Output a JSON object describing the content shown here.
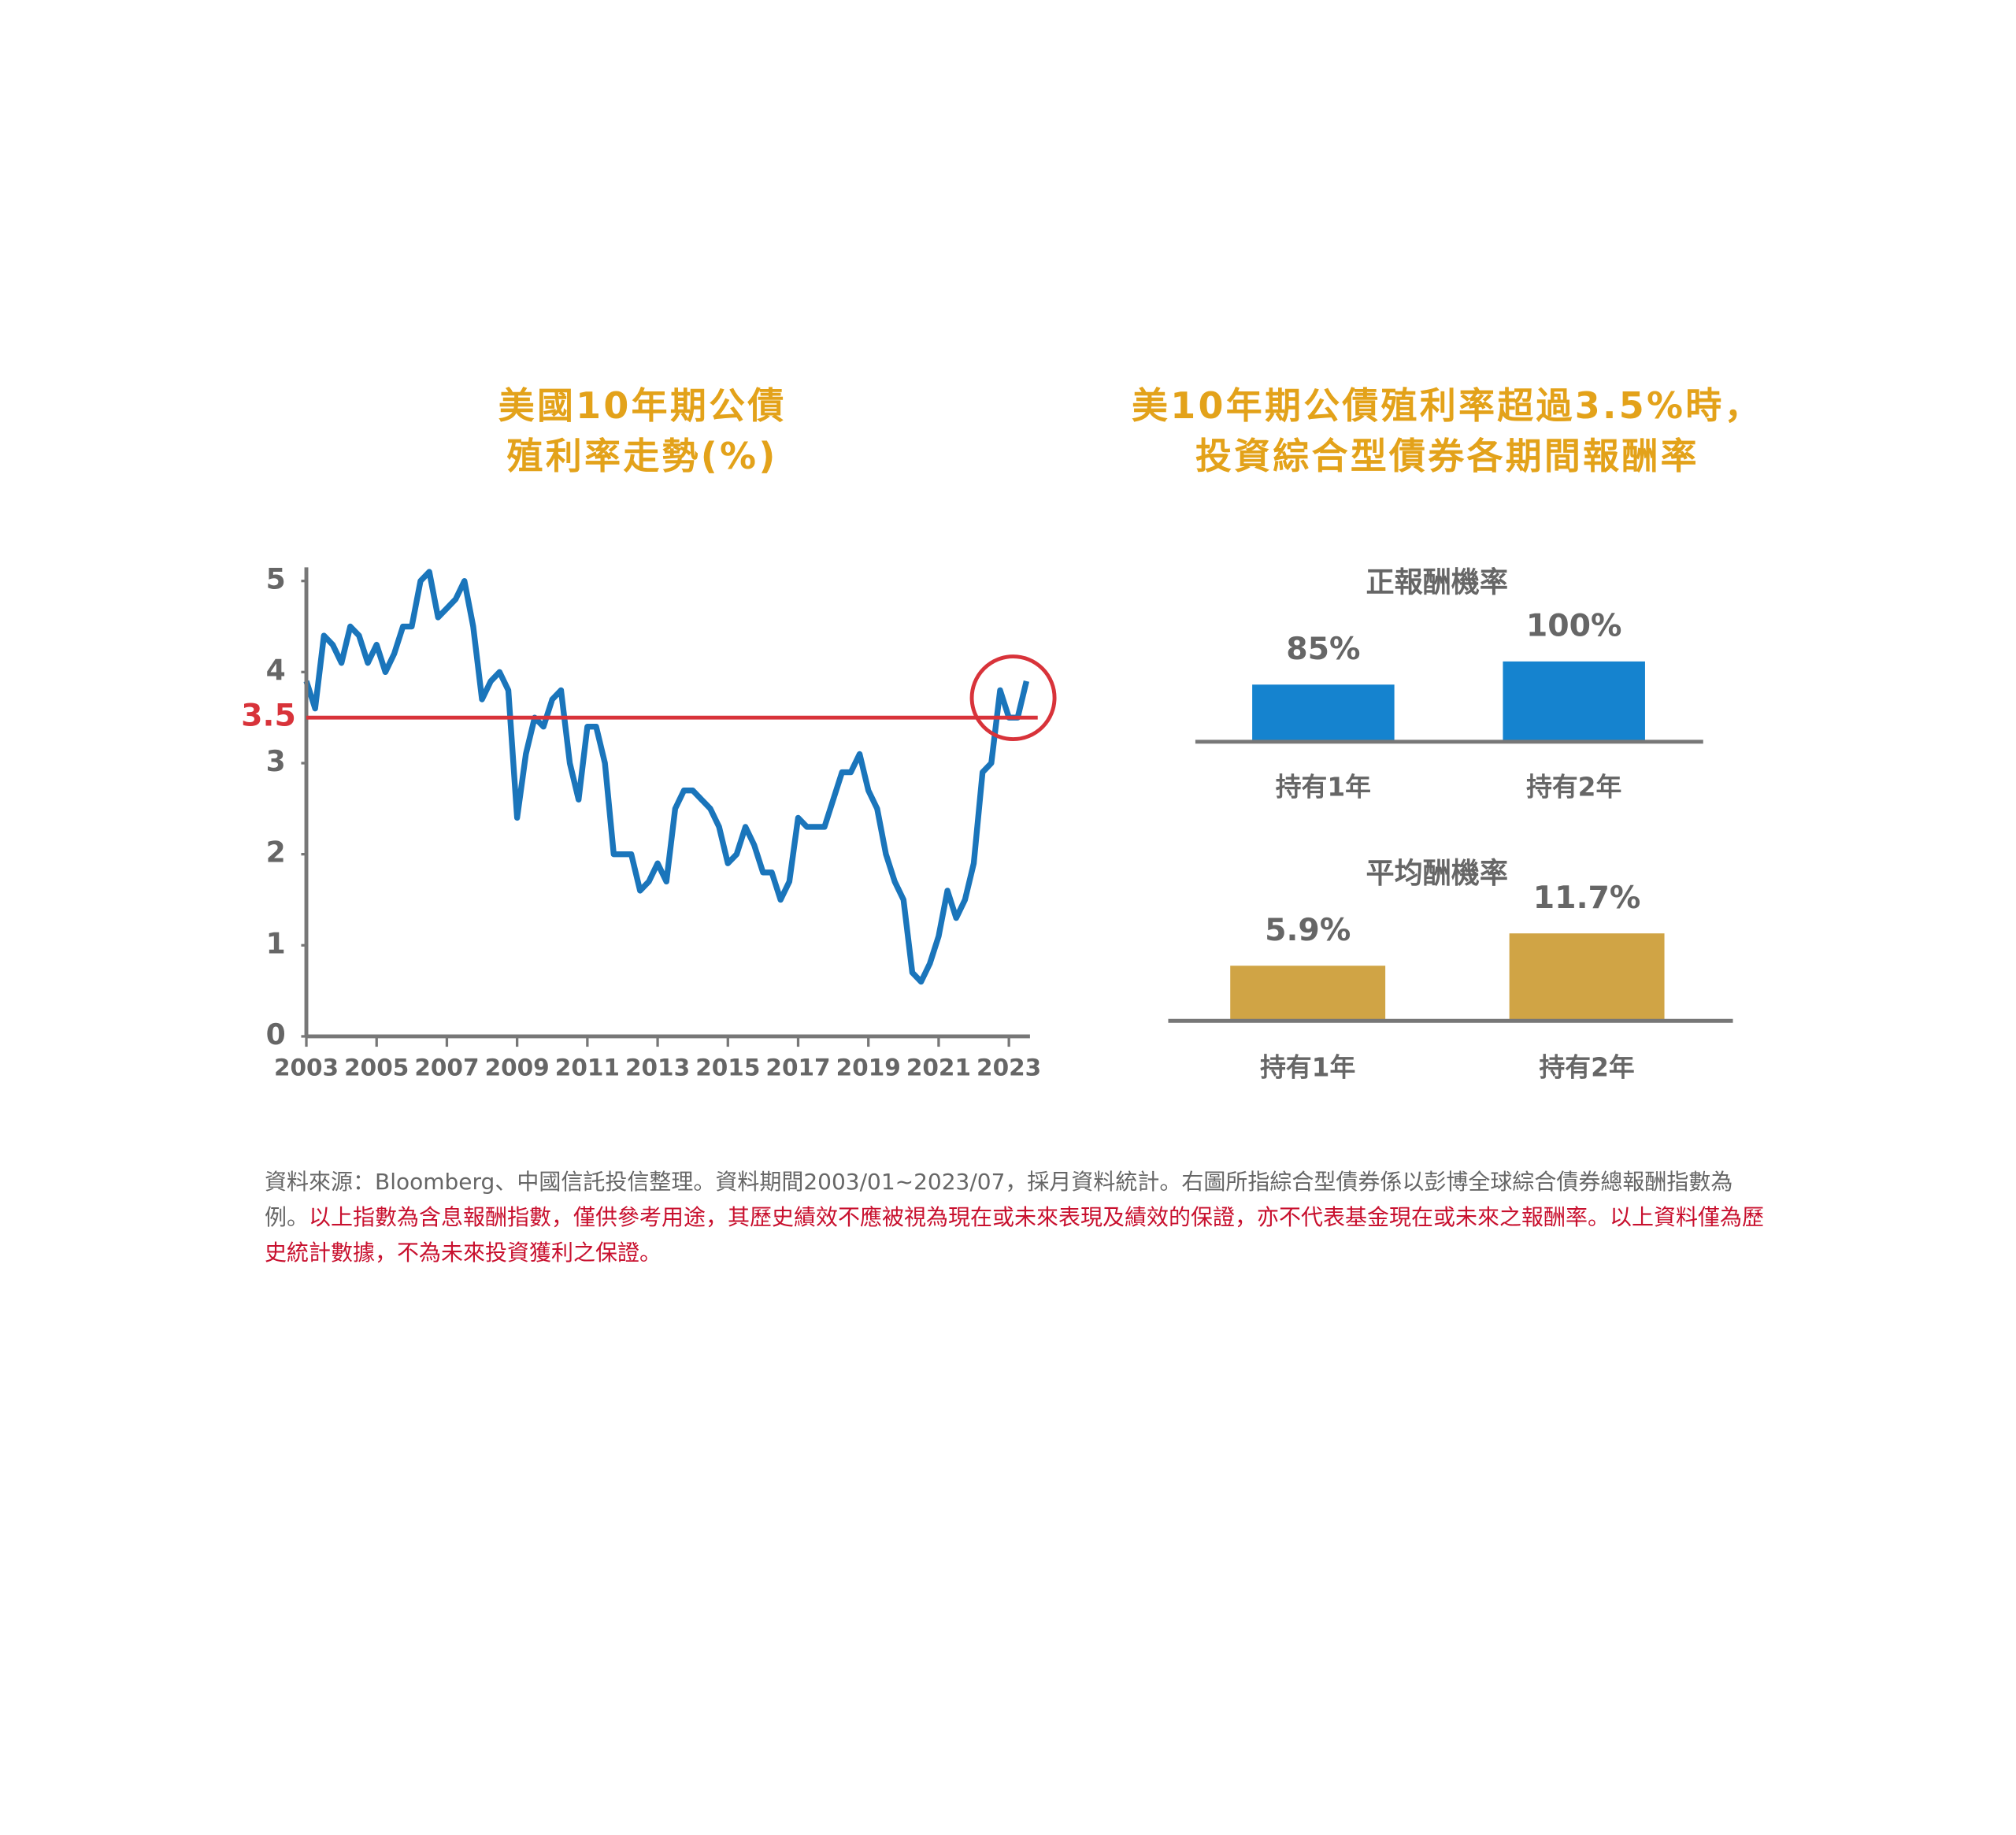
{
  "panel_title": [
    "美10年期公債殖利率超過3.5%時，",
    "投資綜合型債券各期間報酬率"
  ],
  "chart_data": [
    {
      "type": "line",
      "title": [
        "美國10年期公債",
        "殖利率走勢(%)"
      ],
      "x": [
        2003,
        2003.25,
        2003.5,
        2003.75,
        2004,
        2004.25,
        2004.5,
        2004.75,
        2005,
        2005.25,
        2005.5,
        2005.75,
        2006,
        2006.25,
        2006.5,
        2006.75,
        2007,
        2007.25,
        2007.5,
        2007.75,
        2008,
        2008.25,
        2008.5,
        2008.75,
        2009,
        2009.25,
        2009.5,
        2009.75,
        2010,
        2010.25,
        2010.5,
        2010.75,
        2011,
        2011.25,
        2011.5,
        2011.75,
        2012,
        2012.25,
        2012.5,
        2012.75,
        2013,
        2013.25,
        2013.5,
        2013.75,
        2014,
        2014.25,
        2014.5,
        2014.75,
        2015,
        2015.25,
        2015.5,
        2015.75,
        2016,
        2016.25,
        2016.5,
        2016.75,
        2017,
        2017.25,
        2017.5,
        2017.75,
        2018,
        2018.25,
        2018.5,
        2018.75,
        2019,
        2019.25,
        2019.5,
        2019.75,
        2020,
        2020.25,
        2020.5,
        2020.75,
        2021,
        2021.25,
        2021.5,
        2021.75,
        2022,
        2022.25,
        2022.5,
        2022.75,
        2023,
        2023.25,
        2023.5
      ],
      "series": [
        {
          "name": "美國10年期公債殖利率",
          "color": "#1a75bb",
          "values": [
            3.9,
            3.6,
            4.4,
            4.3,
            4.1,
            4.5,
            4.4,
            4.1,
            4.3,
            4.0,
            4.2,
            4.5,
            4.5,
            5.0,
            5.1,
            4.6,
            4.7,
            4.8,
            5.0,
            4.5,
            3.7,
            3.9,
            4.0,
            3.8,
            2.4,
            3.1,
            3.5,
            3.4,
            3.7,
            3.8,
            3.0,
            2.6,
            3.4,
            3.4,
            3.0,
            2.0,
            2.0,
            2.0,
            1.6,
            1.7,
            1.9,
            1.7,
            2.5,
            2.7,
            2.7,
            2.6,
            2.5,
            2.3,
            1.9,
            2.0,
            2.3,
            2.1,
            1.8,
            1.8,
            1.5,
            1.7,
            2.4,
            2.3,
            2.3,
            2.3,
            2.6,
            2.9,
            2.9,
            3.1,
            2.7,
            2.5,
            2.0,
            1.7,
            1.5,
            0.7,
            0.6,
            0.8,
            1.1,
            1.6,
            1.3,
            1.5,
            1.9,
            2.9,
            3.0,
            3.8,
            3.5,
            3.5,
            3.9
          ]
        }
      ],
      "threshold": 3.5,
      "threshold_color": "#d8333a",
      "xlim": [
        2003,
        2023.6
      ],
      "xticks": [
        2003,
        2005,
        2007,
        2009,
        2011,
        2013,
        2015,
        2017,
        2019,
        2021,
        2023
      ],
      "ylim": [
        0,
        5.15
      ],
      "yticks": [
        0,
        1,
        2,
        3,
        4,
        5
      ]
    },
    {
      "type": "bar",
      "title": "正報酬機率",
      "categories": [
        "持有1年",
        "持有2年"
      ],
      "values": [
        85,
        100
      ],
      "value_labels": [
        "85%",
        "100%"
      ],
      "color": "#1583cf",
      "ylim": [
        48,
        130
      ]
    },
    {
      "type": "bar",
      "title": "平均酬機率",
      "categories": [
        "持有1年",
        "持有2年"
      ],
      "values": [
        5.9,
        11.7
      ],
      "value_labels": [
        "5.9%",
        "11.7%"
      ],
      "color": "#d0a445",
      "ylim": [
        -4,
        12
      ]
    }
  ],
  "footnote": {
    "source": "資料來源：Bloomberg、中國信託投信整理。資料期間2003/01~2023/07，採月資料統計。右圖所指綜合型債券係以彭博全球綜合債券總報酬指數為例。",
    "disclaimer": "以上指數為含息報酬指數，僅供參考用途，其歷史績效不應被視為現在或未來表現及績效的保證，亦不代表基金現在或未來之報酬率。以上資料僅為歷史統計數據，不為未來投資獲利之保證。"
  }
}
